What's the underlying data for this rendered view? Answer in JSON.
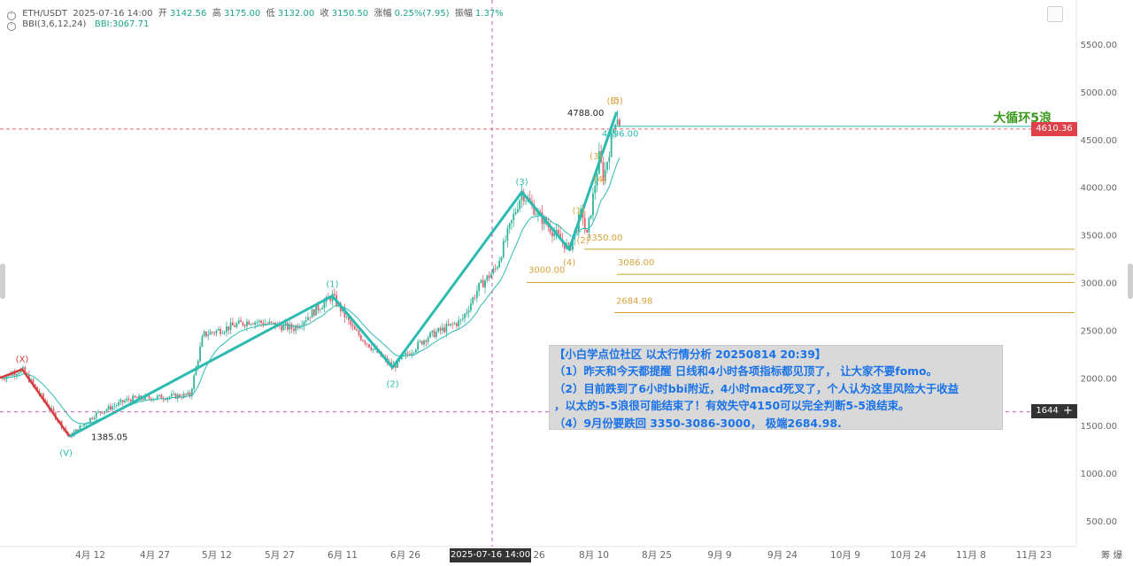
{
  "header": {
    "symbol": "ETH/USDT",
    "datetime": "2025-07-16 14:00",
    "open_label": "开",
    "open": "3142.56",
    "high_label": "高",
    "high": "3175.00",
    "low_label": "低",
    "low": "3132.00",
    "close_label": "收",
    "close": "3150.50",
    "change_label": "涨幅",
    "change": "0.25%(7.95)",
    "amp_label": "振幅",
    "amp": "1.37%",
    "indicator": "BBI(3,6,12,24)",
    "indicator_value": "BBI:3067.71"
  },
  "price_tags": {
    "current": "4610.36",
    "crosshair": "1644.67",
    "crosshair_time": "2025-07-16 14:00"
  },
  "title_annotation": "大循环5浪",
  "note": {
    "lines": [
      "【小白学点位社区 以太行情分析 20250814 20:39】",
      "（1）昨天和今天都提醒 日线和4小时各项指标都见顶了， 让大家不要fomo。",
      "（2）目前跌到了6小时bbi附近，4小时macd死叉了，个人认为这里风险大于收益",
      "，以太的5-5浪很可能结束了！有效失守4150可以完全判断5-5浪结束。",
      "（4）9月份要跌回 3350-3086-3000， 极端2684.98."
    ]
  },
  "colors": {
    "wave": "#2bbbb0",
    "wave_x": "#d63b3b",
    "fib": "#d9a23c",
    "up": "#34b39a",
    "down": "#d9626b",
    "label_green": "#3a9a1e",
    "crosshair": "#c95fb4"
  },
  "chart_data": {
    "type": "candlestick",
    "y_axis": {
      "ticks": [
        "5500.00",
        "5000.00",
        "4500.00",
        "4000.00",
        "3500.00",
        "3000.00",
        "2500.00",
        "2000.00",
        "1500.00",
        "1000.00",
        "500.00"
      ]
    },
    "x_axis": {
      "ticks": [
        "4月 12",
        "4月 27",
        "5月 12",
        "5月 27",
        "6月 11",
        "6月 26",
        "26",
        "8月 10",
        "8月 25",
        "9月 9",
        "9月 24",
        "10月 9",
        "10月 24",
        "11月 8",
        "11月 23"
      ],
      "right_label": "筹 爆"
    },
    "wave_points": [
      {
        "label": "(X)",
        "date": "03-28",
        "value": 2090
      },
      {
        "label": "(Ⅴ)",
        "date": "04-08",
        "value": 1385.05
      },
      {
        "label": "(1)",
        "date": "06-08",
        "value": 2860
      },
      {
        "label": "(2)",
        "date": "06-22",
        "value": 2110
      },
      {
        "label": "(3)",
        "date": "07-22",
        "value": 3950
      },
      {
        "label": "(4)",
        "date": "08-02",
        "value": 3350
      },
      {
        "label": "(5)",
        "date": "08-13",
        "value": 4788
      }
    ],
    "sub_wave_labels": [
      {
        "label": "(1)",
        "date": "08-05",
        "value": 3760
      },
      {
        "label": "(2)",
        "date": "08-06",
        "value": 3450
      },
      {
        "label": "(3)",
        "date": "08-09",
        "value": 4330
      },
      {
        "label": "(4)",
        "date": "08-10",
        "value": 4090
      },
      {
        "label": "(5)",
        "date": "08-13",
        "value": 4910
      }
    ],
    "price_labels": [
      {
        "text": "1385.05",
        "value": 1385.05
      },
      {
        "text": "4788.00",
        "value": 4788
      },
      {
        "text": "4596.00",
        "value": 4596
      }
    ],
    "fib_levels": [
      {
        "value": 3350,
        "label": "3350.00"
      },
      {
        "value": 3086,
        "label": "3086.00"
      },
      {
        "value": 3000,
        "label": "3000.00"
      },
      {
        "value": 2684.98,
        "label": "2684.98"
      }
    ],
    "current_price": 4610.36,
    "crosshair_price": 1644.67
  }
}
